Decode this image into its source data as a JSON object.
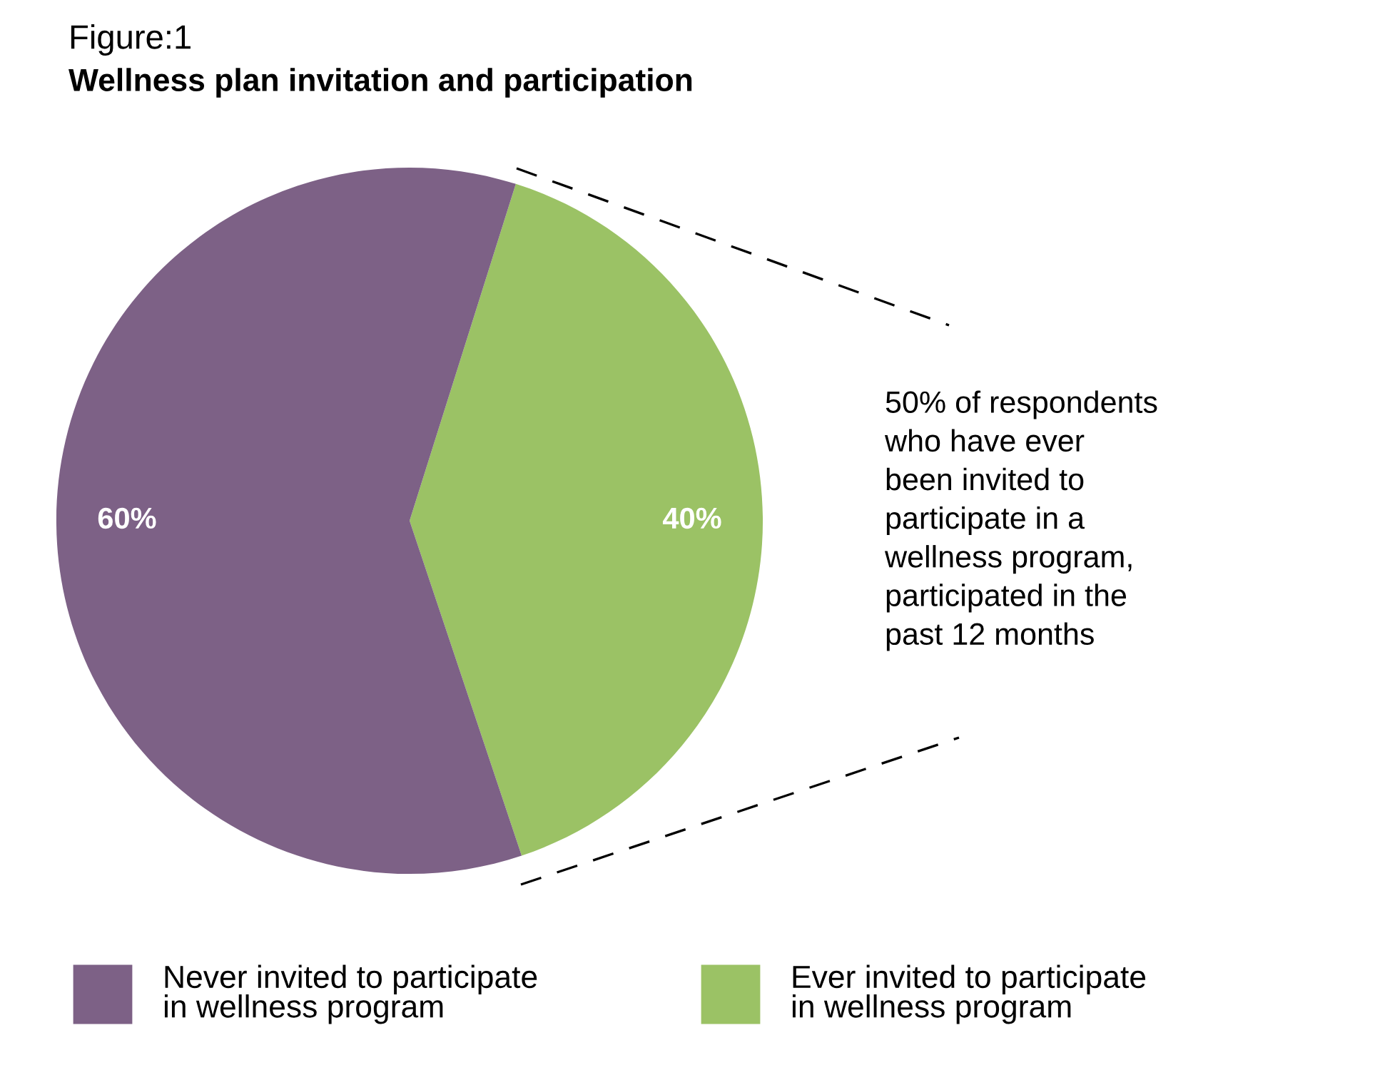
{
  "chart_data": {
    "type": "pie",
    "title": "Figure:1",
    "subtitle": "Wellness plan invitation and participation",
    "categories": [
      "Ever invited to participate\nin wellness program",
      "Never invited to participate\nin wellness program"
    ],
    "values": [
      40,
      60
    ],
    "colors": [
      "#9bc265",
      "#7d6186"
    ],
    "value_labels": [
      "40%",
      "60%"
    ],
    "legend": "bottom",
    "annotations": [
      "50% of respondents\nwho have ever\nbeen invited to\nparticipate in a\nwellness program,\nparticipated in the\npast 12 months"
    ]
  }
}
